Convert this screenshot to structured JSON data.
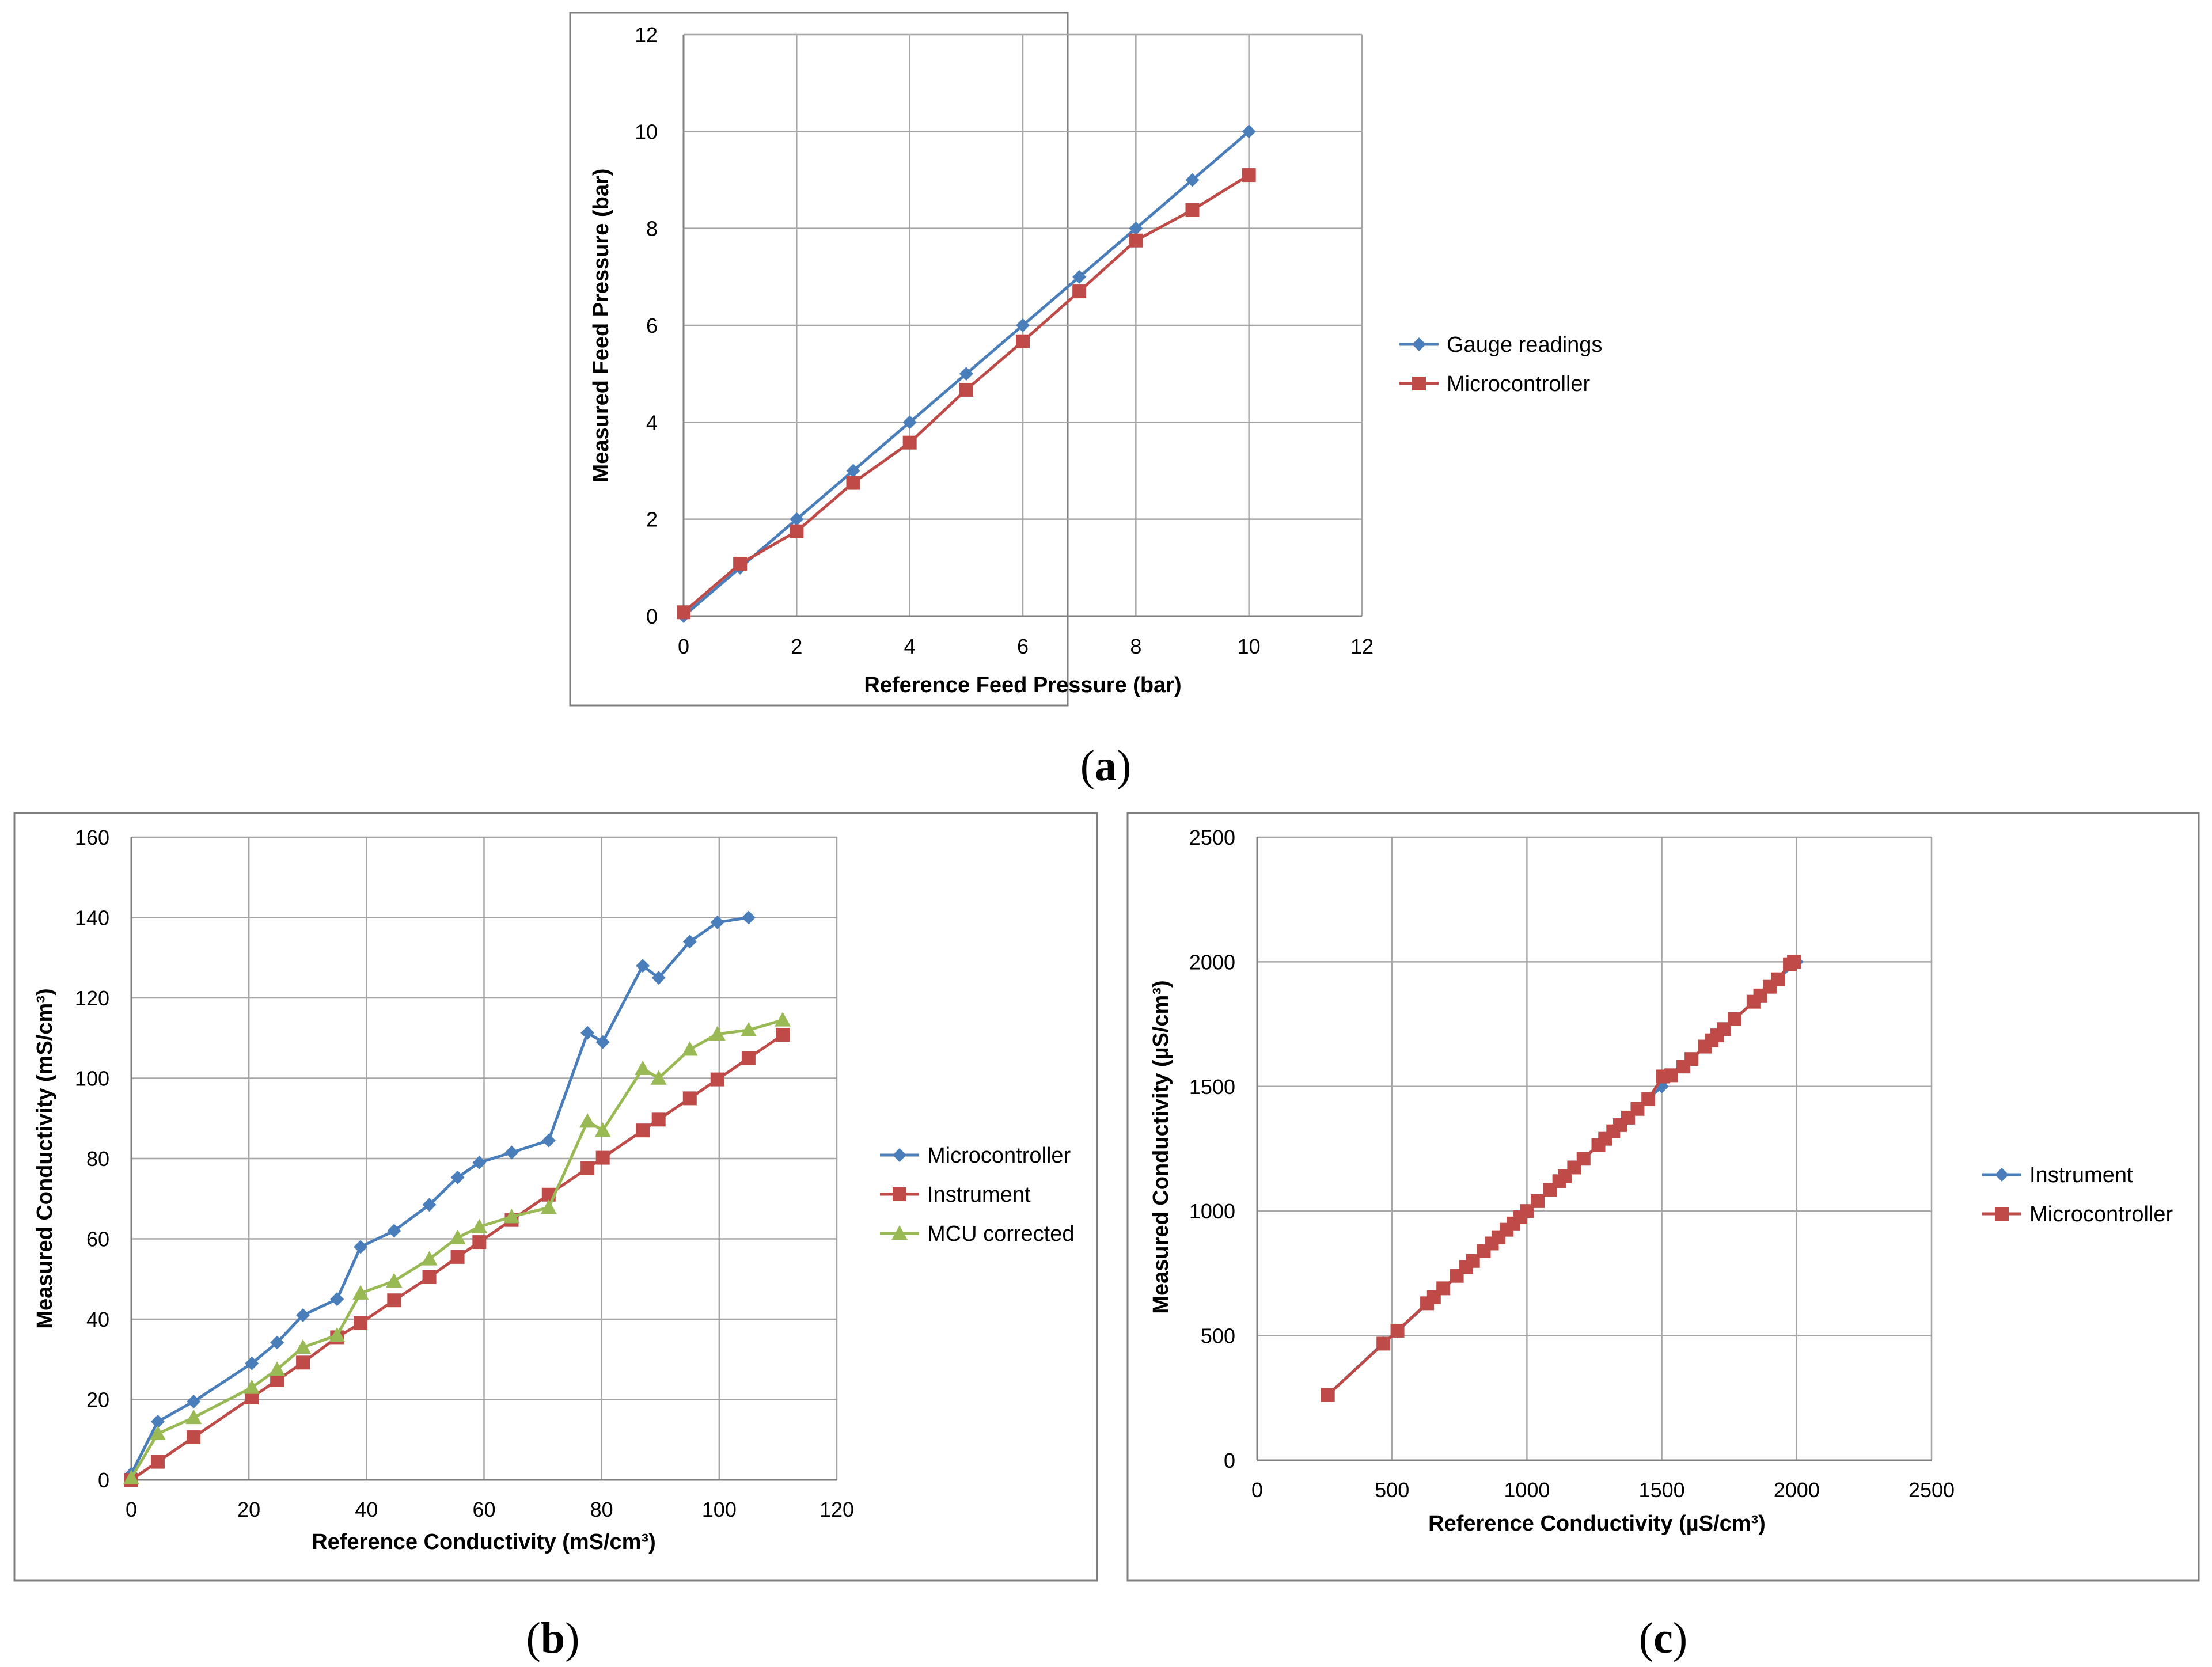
{
  "chart_data": [
    {
      "id": "a",
      "type": "line",
      "caption": "a",
      "title": "",
      "xlabel": "Reference Feed Pressure (bar)",
      "ylabel": "Measured Feed  Pressure (bar)",
      "xlim": [
        0,
        12
      ],
      "ylim": [
        0,
        12
      ],
      "xticks": [
        0,
        2,
        4,
        6,
        8,
        10,
        12
      ],
      "yticks": [
        0,
        2,
        4,
        6,
        8,
        10,
        12
      ],
      "grid": "both",
      "legend_position": "right",
      "series": [
        {
          "name": "Gauge readings",
          "color": "#4a7ebb",
          "marker": "diamond",
          "x": [
            0,
            1,
            2,
            3,
            4,
            5,
            6,
            7,
            8,
            9,
            10
          ],
          "y": [
            0,
            1,
            2,
            3,
            4,
            5,
            6,
            7,
            8,
            9,
            10
          ]
        },
        {
          "name": "Microcontroller",
          "color": "#be4b48",
          "marker": "square",
          "x": [
            0,
            1,
            2,
            3,
            4,
            5,
            6,
            7,
            8,
            9,
            10
          ],
          "y": [
            0.08,
            1.08,
            1.75,
            2.75,
            3.58,
            4.67,
            5.67,
            6.7,
            7.75,
            8.38,
            9.1
          ]
        }
      ]
    },
    {
      "id": "b",
      "type": "line",
      "caption": "b",
      "title": "",
      "xlabel": "Reference Conductivity (mS/cm³)",
      "ylabel": "Measured Conductivity (mS/cm³)",
      "xlim": [
        0,
        120
      ],
      "ylim": [
        0,
        160
      ],
      "xticks": [
        0,
        20,
        40,
        60,
        80,
        100,
        120
      ],
      "yticks": [
        0,
        20,
        40,
        60,
        80,
        100,
        120,
        140,
        160
      ],
      "grid": "both",
      "legend_position": "right",
      "series": [
        {
          "name": "Microcontroller",
          "color": "#4a7ebb",
          "marker": "diamond",
          "x": [
            0,
            4.5,
            10.6,
            20.5,
            24.8,
            29.2,
            35,
            39,
            44.7,
            50.7,
            55.5,
            59.2,
            64.7,
            71,
            77.6,
            80.2,
            87,
            89.7,
            95,
            99.7,
            105
          ],
          "y": [
            1.5,
            14.5,
            19.5,
            29,
            34.2,
            41,
            45,
            58,
            62,
            68.5,
            75.3,
            79,
            81.5,
            84.5,
            111.3,
            109,
            128,
            125,
            134,
            138.8,
            140
          ]
        },
        {
          "name": "Instrument",
          "color": "#be4b48",
          "marker": "square",
          "x": [
            0,
            4.5,
            10.6,
            20.5,
            24.8,
            29.2,
            35,
            39,
            44.7,
            50.7,
            55.5,
            59.2,
            64.7,
            71,
            77.6,
            80.2,
            87,
            89.7,
            95,
            99.7,
            105,
            110.8
          ],
          "y": [
            0,
            4.5,
            10.6,
            20.5,
            24.8,
            29.2,
            35.5,
            39,
            44.7,
            50.5,
            55.5,
            59.2,
            64.7,
            71,
            77.6,
            80.2,
            87,
            89.7,
            95,
            99.7,
            105,
            110.8
          ]
        },
        {
          "name": "MCU corrected",
          "color": "#98b954",
          "marker": "triangle",
          "x": [
            0,
            4.5,
            10.6,
            20.5,
            24.8,
            29.2,
            35,
            39,
            44.7,
            50.7,
            55.5,
            59.2,
            64.7,
            71,
            77.6,
            80.2,
            87,
            89.7,
            95,
            99.7,
            105,
            110.8
          ],
          "y": [
            0.5,
            11.5,
            15.5,
            23,
            27.5,
            33,
            36,
            46.5,
            49.5,
            55,
            60.3,
            63,
            65.5,
            67.8,
            89.3,
            87,
            102.4,
            100,
            107.2,
            111,
            112,
            114.5
          ]
        }
      ]
    },
    {
      "id": "c",
      "type": "line",
      "caption": "c",
      "title": "",
      "xlabel": "Reference Conductivity (µS/cm³)",
      "ylabel": "Measured Conductivity (µS/cm³)",
      "xlim": [
        0,
        2500
      ],
      "ylim": [
        0,
        2500
      ],
      "xticks": [
        0,
        500,
        1000,
        1500,
        2000,
        2500
      ],
      "yticks": [
        0,
        500,
        1000,
        1500,
        2000,
        2500
      ],
      "grid": "both",
      "legend_position": "right",
      "series": [
        {
          "name": "Instrument",
          "color": "#4a7ebb",
          "marker": "diamond",
          "x": [
            262,
            468,
            520,
            1500,
            2000
          ],
          "y": [
            262,
            470,
            518,
            1500,
            2000
          ]
        },
        {
          "name": "Microcontroller",
          "color": "#be4b48",
          "marker": "square",
          "x": [
            262,
            468,
            520,
            630,
            655,
            690,
            740,
            775,
            800,
            840,
            870,
            895,
            925,
            950,
            975,
            1000,
            1040,
            1085,
            1120,
            1140,
            1175,
            1210,
            1265,
            1290,
            1320,
            1345,
            1375,
            1410,
            1450,
            1505,
            1535,
            1580,
            1610,
            1660,
            1685,
            1705,
            1730,
            1770,
            1840,
            1865,
            1900,
            1930,
            1975,
            1990
          ],
          "y": [
            262,
            468,
            520,
            630,
            655,
            690,
            740,
            775,
            800,
            840,
            870,
            895,
            925,
            950,
            975,
            1000,
            1040,
            1085,
            1120,
            1140,
            1175,
            1210,
            1265,
            1290,
            1320,
            1345,
            1375,
            1410,
            1450,
            1540,
            1545,
            1580,
            1610,
            1660,
            1685,
            1705,
            1730,
            1770,
            1840,
            1865,
            1900,
            1930,
            1990,
            2000
          ]
        }
      ]
    }
  ]
}
